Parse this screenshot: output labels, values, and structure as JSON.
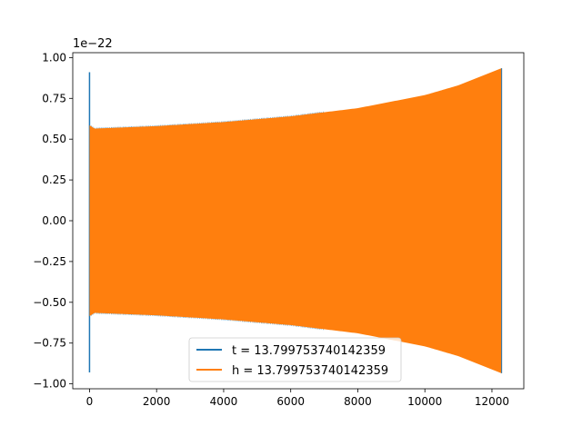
{
  "chart_data": {
    "type": "line",
    "title": "",
    "xlabel": "",
    "ylabel": "",
    "y_offset_label": "1e−22",
    "xlim": [
      -500,
      12950
    ],
    "ylim": [
      -1.03,
      1.03
    ],
    "x_ticks": [
      {
        "value": 0,
        "label": "0"
      },
      {
        "value": 2000,
        "label": "2000"
      },
      {
        "value": 4000,
        "label": "4000"
      },
      {
        "value": 6000,
        "label": "6000"
      },
      {
        "value": 8000,
        "label": "8000"
      },
      {
        "value": 10000,
        "label": "10000"
      },
      {
        "value": 12000,
        "label": "12000"
      }
    ],
    "y_ticks": [
      {
        "value": 1.0,
        "label": "1.00"
      },
      {
        "value": 0.75,
        "label": "0.75"
      },
      {
        "value": 0.5,
        "label": "0.50"
      },
      {
        "value": 0.25,
        "label": "0.25"
      },
      {
        "value": 0.0,
        "label": "0.00"
      },
      {
        "value": -0.25,
        "label": "−0.25"
      },
      {
        "value": -0.5,
        "label": "−0.50"
      },
      {
        "value": -0.75,
        "label": "−0.75"
      },
      {
        "value": -1.0,
        "label": "−1.00"
      }
    ],
    "grid": false,
    "legend_position": "bottom-center",
    "series": [
      {
        "name": "t = 13.799753740142359",
        "color": "#1f77b4",
        "spike": {
          "x": 0,
          "max": 0.91,
          "min": -0.93
        },
        "envelope": {
          "x_start": 0,
          "x_end": 12290,
          "start_amplitude": 0.56,
          "end_amplitude": 0.93
        }
      },
      {
        "name": "h = 13.799753740142359",
        "color": "#ff7f0e",
        "envelope": [
          {
            "x": 0,
            "amplitude": 0.585
          },
          {
            "x": 150,
            "amplitude": 0.565
          },
          {
            "x": 2000,
            "amplitude": 0.58
          },
          {
            "x": 4000,
            "amplitude": 0.605
          },
          {
            "x": 6000,
            "amplitude": 0.64
          },
          {
            "x": 8000,
            "amplitude": 0.69
          },
          {
            "x": 10000,
            "amplitude": 0.77
          },
          {
            "x": 11000,
            "amplitude": 0.83
          },
          {
            "x": 12290,
            "amplitude": 0.935
          }
        ]
      }
    ]
  }
}
